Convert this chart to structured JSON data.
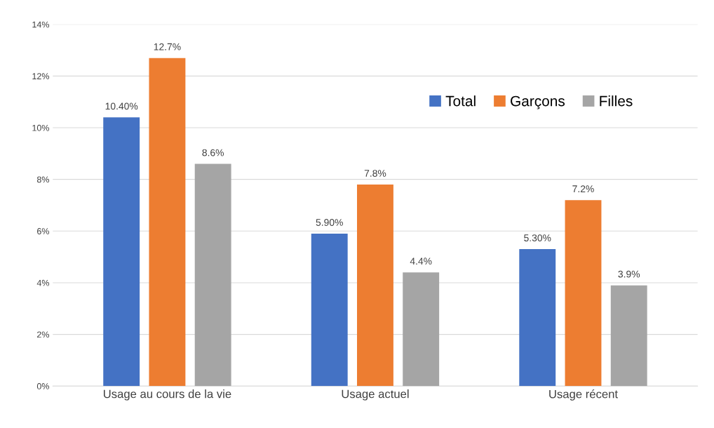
{
  "chart_data": {
    "type": "bar",
    "categories": [
      "Usage au cours de la vie",
      "Usage actuel",
      "Usage récent"
    ],
    "series": [
      {
        "name": "Total",
        "color": "#4472c4",
        "values": [
          10.4,
          5.9,
          5.3
        ],
        "value_labels": [
          "10.40%",
          "5.90%",
          "5.30%"
        ]
      },
      {
        "name": "Garçons",
        "color": "#ed7d31",
        "values": [
          12.7,
          7.8,
          7.2
        ],
        "value_labels": [
          "12.7%",
          "7.8%",
          "7.2%"
        ]
      },
      {
        "name": "Filles",
        "color": "#a5a5a5",
        "values": [
          8.6,
          4.4,
          3.9
        ],
        "value_labels": [
          "8.6%",
          "4.4%",
          "3.9%"
        ]
      }
    ],
    "ylim": [
      0,
      14
    ],
    "yticks": [
      {
        "value": 0,
        "label": "0%"
      },
      {
        "value": 2,
        "label": "2%"
      },
      {
        "value": 4,
        "label": "4%"
      },
      {
        "value": 6,
        "label": "6%"
      },
      {
        "value": 8,
        "label": "8%"
      },
      {
        "value": 10,
        "label": "10%"
      },
      {
        "value": 12,
        "label": "12%"
      },
      {
        "value": 14,
        "label": "14%"
      }
    ],
    "grid": "y",
    "legend": "top right"
  }
}
